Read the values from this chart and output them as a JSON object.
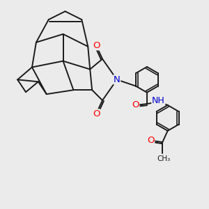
{
  "bg_color": "#ebebeb",
  "bond_color": "#1a1a1a",
  "bond_width": 1.4,
  "atom_colors": {
    "O": "#ff0000",
    "N": "#0000cd",
    "H": "#2e8b57",
    "C": "#1a1a1a"
  },
  "font_size_atom": 9.5
}
